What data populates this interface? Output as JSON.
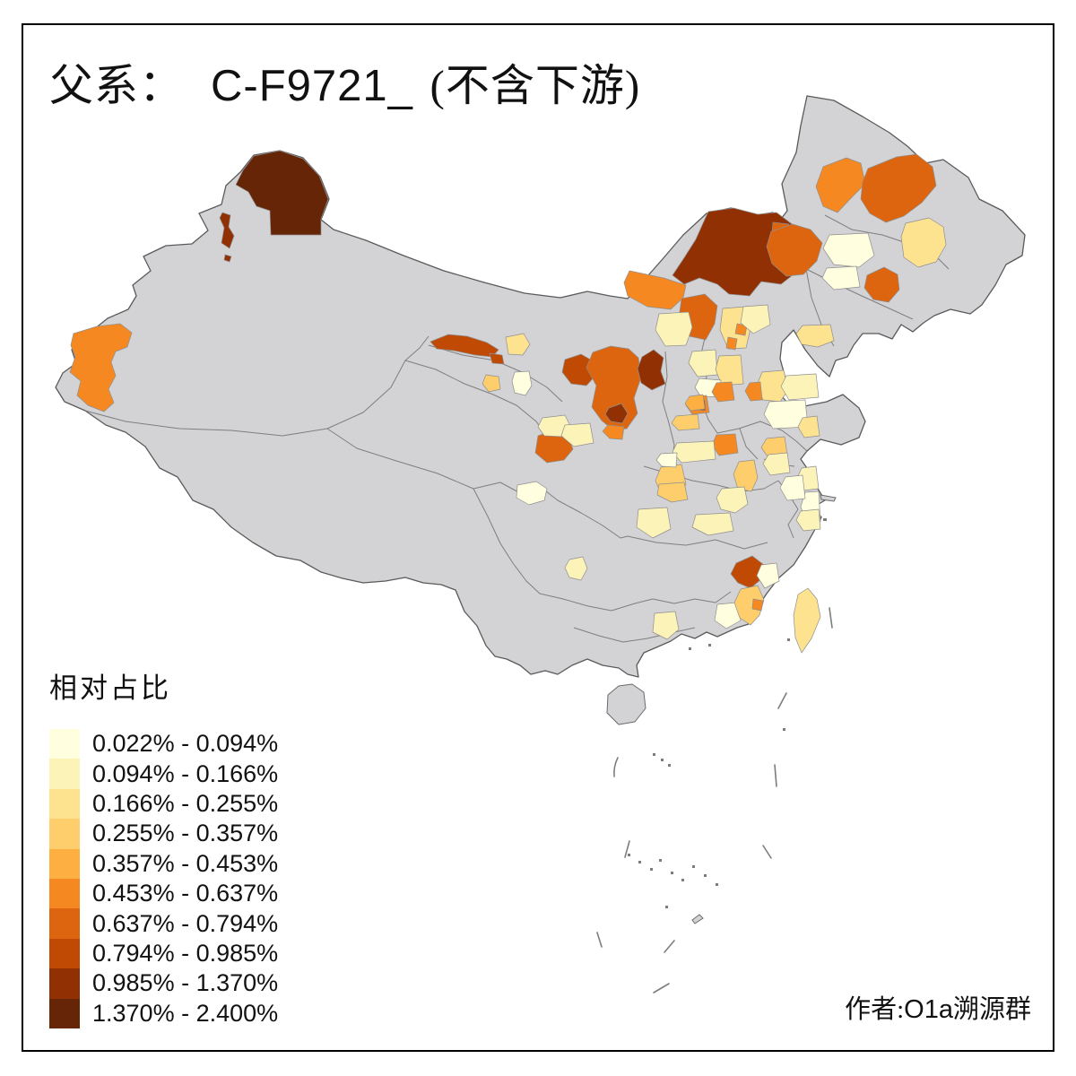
{
  "title": {
    "prefix": "父系：",
    "haplogroup": "C-F9721_",
    "suffix": "(不含下游)"
  },
  "legend": {
    "title": "相对占比",
    "entries": [
      {
        "label": "0.022% - 0.094%",
        "color": "#FFFFE0"
      },
      {
        "label": "0.094% - 0.166%",
        "color": "#FCF3B9"
      },
      {
        "label": "0.166% - 0.255%",
        "color": "#FDE38F"
      },
      {
        "label": "0.255% - 0.357%",
        "color": "#FDCE6B"
      },
      {
        "label": "0.357% - 0.453%",
        "color": "#FDAF41"
      },
      {
        "label": "0.453% - 0.637%",
        "color": "#F58821"
      },
      {
        "label": "0.637% - 0.794%",
        "color": "#DD650F"
      },
      {
        "label": "0.794% - 0.985%",
        "color": "#C04A04"
      },
      {
        "label": "0.985% - 1.370%",
        "color": "#913103"
      },
      {
        "label": "1.370% - 2.400%",
        "color": "#662506"
      }
    ]
  },
  "attribution": {
    "prefix": "作者:",
    "latin": "O1a",
    "suffix": "溯源群"
  },
  "map": {
    "nodata_color": "#D3D3D6",
    "class_colors": [
      "#FFFFE0",
      "#FCF3B9",
      "#FDE38F",
      "#FDCE6B",
      "#FDAF41",
      "#F58821",
      "#DD650F",
      "#C04A04",
      "#913103",
      "#662506"
    ],
    "outline_color": "#5A5A5A",
    "province_border_color": "#757575",
    "region_border_color": "#8F8F8F"
  }
}
